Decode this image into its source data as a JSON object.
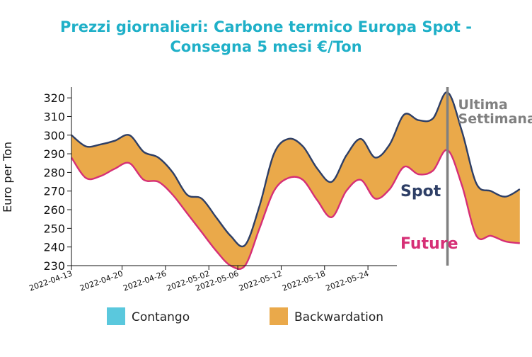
{
  "chart_data": {
    "type": "area",
    "title_line1": "Prezzi giornalieri: Carbone termico Europa Spot -",
    "title_line2": "Consegna 5 mesi €/Ton",
    "xlabel": "",
    "ylabel": "Euro per Ton",
    "ylim": [
      230,
      325
    ],
    "yticks": [
      230,
      240,
      250,
      260,
      270,
      280,
      290,
      300,
      310,
      320
    ],
    "x_start": "2022-04-13",
    "x_end": "2022-05-28",
    "xticks": [
      "2022-04-13",
      "2022-04-20",
      "2022-04-26",
      "2022-05-02",
      "2022-05-06",
      "2022-05-12",
      "2022-05-18",
      "2022-05-24"
    ],
    "grid": false,
    "series": [
      {
        "name": "Spot",
        "color": "#2e3f66",
        "points": [
          [
            "2022-04-13",
            300
          ],
          [
            "2022-04-15",
            294
          ],
          [
            "2022-04-17",
            295
          ],
          [
            "2022-04-19",
            297
          ],
          [
            "2022-04-21",
            300
          ],
          [
            "2022-04-23",
            291
          ],
          [
            "2022-04-25",
            288
          ],
          [
            "2022-04-27",
            280
          ],
          [
            "2022-04-29",
            268
          ],
          [
            "2022-05-01",
            266
          ],
          [
            "2022-05-03",
            256
          ],
          [
            "2022-05-05",
            246
          ],
          [
            "2022-05-07",
            241
          ],
          [
            "2022-05-09",
            262
          ],
          [
            "2022-05-11",
            290
          ],
          [
            "2022-05-13",
            298
          ],
          [
            "2022-05-15",
            294
          ],
          [
            "2022-05-17",
            282
          ],
          [
            "2022-05-19",
            275
          ],
          [
            "2022-05-21",
            289
          ],
          [
            "2022-05-23",
            298
          ],
          [
            "2022-05-25",
            288
          ],
          [
            "2022-05-27",
            295
          ],
          [
            "2022-05-29",
            311
          ],
          [
            "2022-05-31",
            308
          ],
          [
            "2022-06-02",
            309
          ],
          [
            "2022-06-04",
            323
          ],
          [
            "2022-06-06",
            302
          ],
          [
            "2022-06-08",
            274
          ],
          [
            "2022-06-10",
            270
          ],
          [
            "2022-06-12",
            267
          ],
          [
            "2022-06-14",
            271
          ]
        ]
      },
      {
        "name": "Future",
        "color": "#d62f76",
        "points": [
          [
            "2022-04-13",
            288
          ],
          [
            "2022-04-15",
            277
          ],
          [
            "2022-04-17",
            278
          ],
          [
            "2022-04-19",
            282
          ],
          [
            "2022-04-21",
            285
          ],
          [
            "2022-04-23",
            276
          ],
          [
            "2022-04-25",
            275
          ],
          [
            "2022-04-27",
            268
          ],
          [
            "2022-04-29",
            258
          ],
          [
            "2022-05-01",
            248
          ],
          [
            "2022-05-03",
            238
          ],
          [
            "2022-05-05",
            230
          ],
          [
            "2022-05-07",
            230
          ],
          [
            "2022-05-09",
            250
          ],
          [
            "2022-05-11",
            270
          ],
          [
            "2022-05-13",
            277
          ],
          [
            "2022-05-15",
            276
          ],
          [
            "2022-05-17",
            265
          ],
          [
            "2022-05-19",
            256
          ],
          [
            "2022-05-21",
            270
          ],
          [
            "2022-05-23",
            276
          ],
          [
            "2022-05-25",
            266
          ],
          [
            "2022-05-27",
            271
          ],
          [
            "2022-05-29",
            283
          ],
          [
            "2022-05-31",
            279
          ],
          [
            "2022-06-02",
            281
          ],
          [
            "2022-06-04",
            292
          ],
          [
            "2022-06-06",
            273
          ],
          [
            "2022-06-08",
            246
          ],
          [
            "2022-06-10",
            246
          ],
          [
            "2022-06-12",
            243
          ],
          [
            "2022-06-14",
            242
          ]
        ]
      }
    ],
    "annotation": {
      "text_line1": "Ultima",
      "text_line2": "Settimana",
      "date": "2022-06-04",
      "color": "#808080"
    },
    "legend": {
      "placement": "bottom",
      "items": [
        {
          "label": "Contango",
          "color": "#5ac8dd"
        },
        {
          "label": "Backwardation",
          "color": "#eaa94a"
        }
      ]
    },
    "fill_color": "#eaa94a"
  }
}
